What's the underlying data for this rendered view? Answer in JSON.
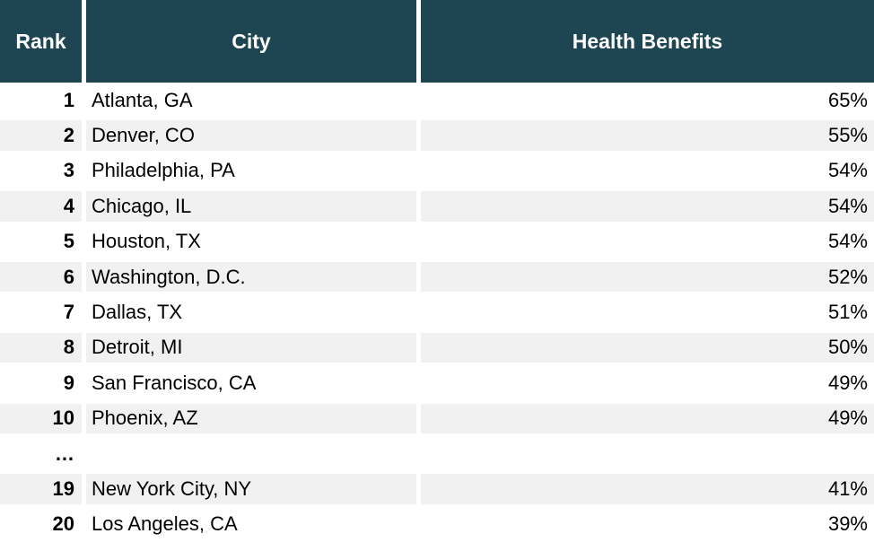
{
  "colors": {
    "header_bg": "#1d4552",
    "stripe_bg": "#f1f1f1",
    "header_text": "#ffffff",
    "body_text": "#000000"
  },
  "chart_data": {
    "type": "table",
    "columns": [
      "Rank",
      "City",
      "Health Benefits"
    ],
    "rows": [
      {
        "rank": "1",
        "city": "Atlanta, GA",
        "health_benefits": "65%"
      },
      {
        "rank": "2",
        "city": "Denver, CO",
        "health_benefits": "55%"
      },
      {
        "rank": "3",
        "city": "Philadelphia, PA",
        "health_benefits": "54%"
      },
      {
        "rank": "4",
        "city": "Chicago, IL",
        "health_benefits": "54%"
      },
      {
        "rank": "5",
        "city": "Houston, TX",
        "health_benefits": "54%"
      },
      {
        "rank": "6",
        "city": "Washington, D.C.",
        "health_benefits": "52%"
      },
      {
        "rank": "7",
        "city": "Dallas, TX",
        "health_benefits": "51%"
      },
      {
        "rank": "8",
        "city": "Detroit, MI",
        "health_benefits": "50%"
      },
      {
        "rank": "9",
        "city": "San Francisco, CA",
        "health_benefits": "49%"
      },
      {
        "rank": "10",
        "city": "Phoenix, AZ",
        "health_benefits": "49%"
      },
      {
        "rank": "…",
        "city": "",
        "health_benefits": ""
      },
      {
        "rank": "19",
        "city": "New York City, NY",
        "health_benefits": "41%"
      },
      {
        "rank": "20",
        "city": "Los Angeles, CA",
        "health_benefits": "39%"
      }
    ]
  }
}
